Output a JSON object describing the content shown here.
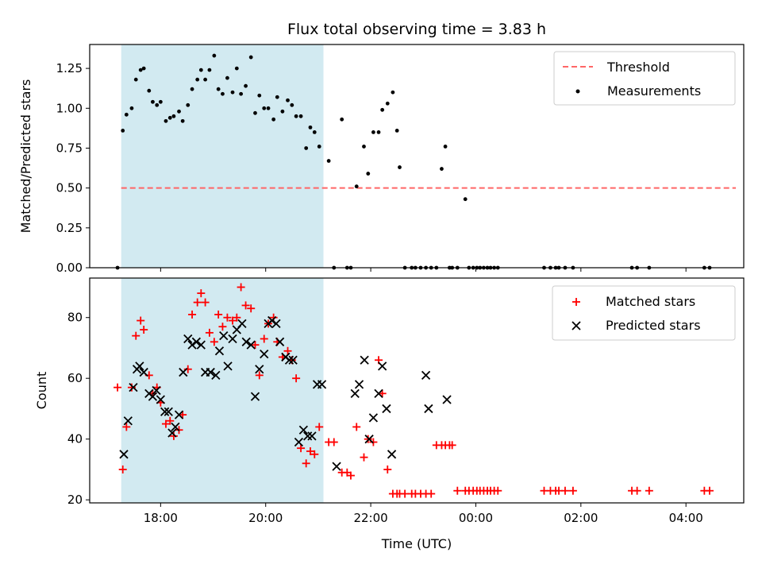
{
  "title": "Flux total observing time = 3.83 h",
  "xlabel": "Time (UTC)",
  "x_tick_labels": [
    "18:00",
    "20:00",
    "22:00",
    "00:00",
    "02:00",
    "04:00"
  ],
  "colors": {
    "shade": "#add8e6",
    "threshold": "#ff6666",
    "matched": "#ff0000",
    "predicted": "#000000",
    "measurement": "#000000"
  },
  "chart_data": [
    {
      "type": "scatter",
      "ylabel": "Matched/Predicted stars",
      "x_unit": "hours since 00:00 UTC of first night (values > 24 are after midnight)",
      "xlim": [
        16.65,
        29.1
      ],
      "ylim": [
        0.0,
        1.4
      ],
      "y_ticks": [
        "0.00",
        "0.25",
        "0.50",
        "0.75",
        "1.00",
        "1.25"
      ],
      "y_tick_values": [
        0.0,
        0.25,
        0.5,
        0.75,
        1.0,
        1.25
      ],
      "shaded_interval": [
        17.25,
        21.1
      ],
      "legend": {
        "placement": "top-right",
        "entries": [
          "Threshold",
          "Measurements"
        ]
      },
      "threshold": {
        "name": "Threshold",
        "y": 0.5,
        "x": [
          17.25,
          28.95
        ]
      },
      "series": [
        {
          "name": "Measurements",
          "x": [
            17.18,
            17.28,
            17.35,
            17.45,
            17.53,
            17.62,
            17.68,
            17.78,
            17.85,
            17.93,
            18.0,
            18.1,
            18.18,
            18.25,
            18.35,
            18.42,
            18.52,
            18.6,
            18.7,
            18.77,
            18.85,
            18.93,
            19.02,
            19.1,
            19.18,
            19.27,
            19.37,
            19.45,
            19.53,
            19.62,
            19.72,
            19.8,
            19.88,
            19.97,
            20.05,
            20.15,
            20.22,
            20.32,
            20.42,
            20.5,
            20.58,
            20.67,
            20.77,
            20.85,
            20.93,
            21.02,
            21.2,
            21.3,
            21.45,
            21.55,
            21.62,
            21.73,
            21.87,
            21.95,
            22.05,
            22.15,
            22.22,
            22.32,
            22.42,
            22.5,
            22.55,
            22.65,
            22.78,
            22.85,
            22.95,
            23.05,
            23.15,
            23.25,
            23.35,
            23.42,
            23.5,
            23.55,
            23.65,
            23.8,
            23.87,
            23.95,
            24.02,
            24.08,
            24.15,
            24.22,
            24.28,
            24.35,
            24.42,
            25.3,
            25.42,
            25.52,
            25.58,
            25.7,
            25.85,
            26.97,
            27.07,
            27.3,
            28.35,
            28.45
          ],
          "y": [
            0.0,
            0.86,
            0.96,
            1.0,
            1.18,
            1.24,
            1.25,
            1.11,
            1.04,
            1.02,
            1.04,
            0.92,
            0.94,
            0.95,
            0.98,
            0.92,
            1.02,
            1.12,
            1.18,
            1.24,
            1.18,
            1.24,
            1.33,
            1.12,
            1.09,
            1.19,
            1.1,
            1.25,
            1.09,
            1.14,
            1.32,
            0.97,
            1.08,
            1.0,
            1.0,
            0.93,
            1.07,
            0.98,
            1.05,
            1.02,
            0.95,
            0.95,
            0.75,
            0.88,
            0.85,
            0.76,
            0.67,
            0.0,
            0.93,
            0.0,
            0.0,
            0.51,
            0.76,
            0.59,
            0.85,
            0.85,
            0.99,
            1.03,
            1.1,
            0.86,
            0.63,
            0.0,
            0.0,
            0.0,
            0.0,
            0.0,
            0.0,
            0.0,
            0.62,
            0.76,
            0.0,
            0.0,
            0.0,
            0.43,
            0.0,
            0.0,
            0.0,
            0.0,
            0.0,
            0.0,
            0.0,
            0.0,
            0.0,
            0.0,
            0.0,
            0.0,
            0.0,
            0.0,
            0.0,
            0.0,
            0.0,
            0.0,
            0.0,
            0.0
          ]
        }
      ]
    },
    {
      "type": "scatter",
      "ylabel": "Count",
      "x_unit": "hours since 00:00 UTC of first night (values > 24 are after midnight)",
      "xlim": [
        16.65,
        29.1
      ],
      "ylim": [
        19,
        93
      ],
      "y_ticks": [
        "20",
        "40",
        "60",
        "80"
      ],
      "y_tick_values": [
        20,
        40,
        60,
        80
      ],
      "shaded_interval": [
        17.25,
        21.1
      ],
      "legend": {
        "placement": "top-right",
        "entries": [
          "Matched stars",
          "Predicted stars"
        ]
      },
      "series": [
        {
          "name": "Matched stars",
          "marker": "plus",
          "x": [
            17.18,
            17.28,
            17.35,
            17.45,
            17.53,
            17.62,
            17.68,
            17.78,
            17.85,
            17.93,
            18.0,
            18.1,
            18.18,
            18.25,
            18.35,
            18.42,
            18.52,
            18.6,
            18.7,
            18.77,
            18.85,
            18.93,
            19.02,
            19.1,
            19.18,
            19.27,
            19.37,
            19.45,
            19.53,
            19.62,
            19.72,
            19.8,
            19.88,
            19.97,
            20.05,
            20.15,
            20.22,
            20.32,
            20.42,
            20.5,
            20.58,
            20.67,
            20.77,
            20.85,
            20.93,
            21.02,
            21.2,
            21.3,
            21.45,
            21.55,
            21.62,
            21.73,
            21.87,
            21.95,
            22.05,
            22.15,
            22.22,
            22.32,
            22.42,
            22.5,
            22.55,
            22.65,
            22.78,
            22.85,
            22.95,
            23.05,
            23.15,
            23.25,
            23.35,
            23.42,
            23.5,
            23.55,
            23.65,
            23.8,
            23.87,
            23.95,
            24.02,
            24.08,
            24.15,
            24.22,
            24.28,
            24.35,
            24.42,
            25.3,
            25.42,
            25.52,
            25.58,
            25.7,
            25.85,
            26.97,
            27.07,
            27.3,
            28.35,
            28.45
          ],
          "y": [
            57,
            30,
            44,
            57,
            74,
            79,
            76,
            61,
            55,
            57,
            52,
            45,
            46,
            41,
            43,
            48,
            63,
            81,
            85,
            88,
            85,
            75,
            72,
            81,
            77,
            80,
            79,
            80,
            90,
            84,
            83,
            71,
            61,
            73,
            78,
            80,
            72,
            67,
            69,
            66,
            60,
            37,
            32,
            36,
            35,
            44,
            39,
            39,
            29,
            29,
            28,
            44,
            34,
            40,
            39,
            66,
            55,
            30,
            22,
            22,
            22,
            22,
            22,
            22,
            22,
            22,
            22,
            38,
            38,
            38,
            38,
            38,
            23,
            23,
            23,
            23,
            23,
            23,
            23,
            23,
            23,
            23,
            23,
            23,
            23,
            23,
            23,
            23,
            23,
            23,
            23,
            23,
            23,
            23
          ]
        },
        {
          "name": "Predicted stars",
          "marker": "x",
          "x": [
            17.3,
            17.38,
            17.48,
            17.55,
            17.6,
            17.68,
            17.78,
            17.85,
            17.92,
            18.0,
            18.08,
            18.15,
            18.22,
            18.28,
            18.35,
            18.43,
            18.52,
            18.6,
            18.68,
            18.77,
            18.85,
            18.95,
            19.05,
            19.12,
            19.2,
            19.28,
            19.37,
            19.45,
            19.55,
            19.63,
            19.72,
            19.8,
            19.88,
            19.97,
            20.05,
            20.12,
            20.2,
            20.27,
            20.38,
            20.45,
            20.52,
            20.63,
            20.72,
            20.8,
            20.88,
            20.98,
            21.07,
            21.35,
            21.7,
            21.78,
            21.88,
            21.97,
            22.05,
            22.15,
            22.22,
            22.3,
            22.4,
            23.05,
            23.1,
            23.45
          ],
          "y": [
            35,
            46,
            57,
            63,
            64,
            62,
            55,
            54,
            56,
            53,
            49,
            49,
            42,
            44,
            48,
            62,
            73,
            71,
            72,
            71,
            62,
            62,
            61,
            69,
            74,
            64,
            73,
            76,
            78,
            72,
            71,
            54,
            63,
            68,
            78,
            79,
            78,
            72,
            67,
            66,
            66,
            39,
            43,
            41,
            41,
            58,
            58,
            31,
            55,
            58,
            66,
            40,
            47,
            55,
            64,
            50,
            35,
            61,
            50,
            53
          ]
        }
      ]
    }
  ]
}
